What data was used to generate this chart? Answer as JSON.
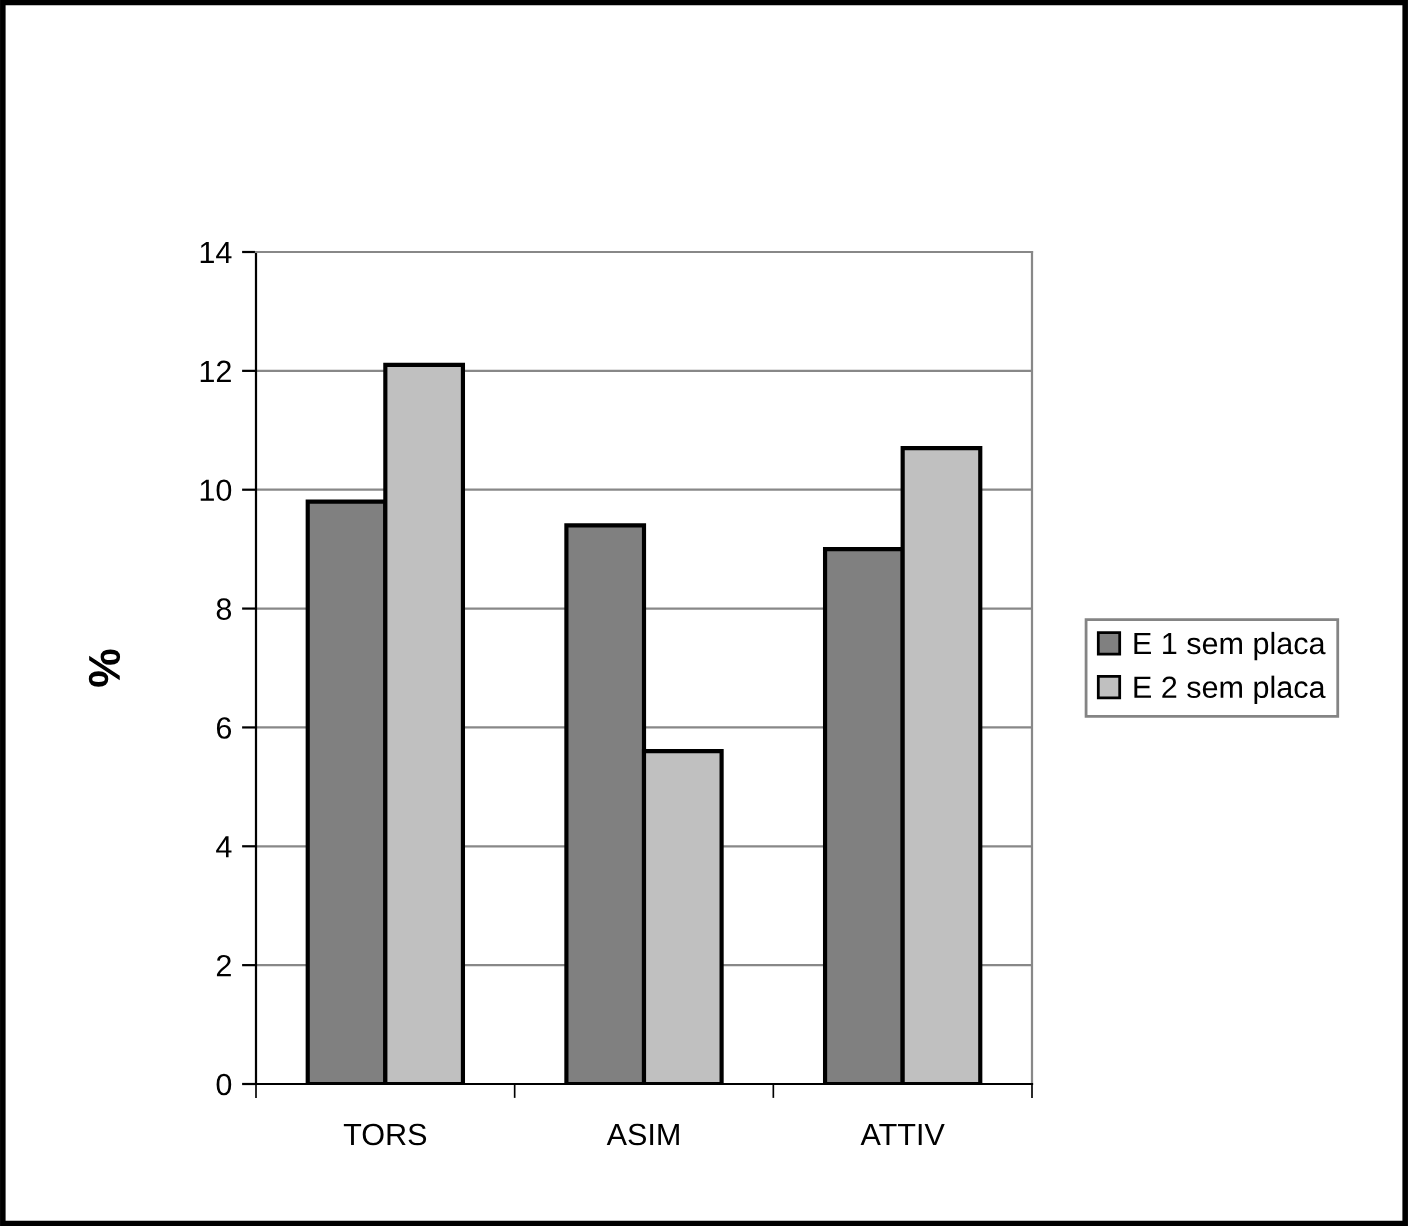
{
  "chart_data": {
    "type": "bar",
    "ylabel": "%",
    "categories": [
      "TORS",
      "ASIM",
      "ATTIV"
    ],
    "series": [
      {
        "name": "E 1 sem placa",
        "color": "#808080",
        "values": [
          9.8,
          9.4,
          9.0
        ]
      },
      {
        "name": "E 2 sem placa",
        "color": "#c0c0c0",
        "values": [
          12.1,
          5.6,
          10.7
        ]
      }
    ],
    "ylim": [
      0,
      14
    ],
    "yticks": [
      0,
      2,
      4,
      6,
      8,
      10,
      12,
      14
    ],
    "grid": "y",
    "legend": "right"
  }
}
